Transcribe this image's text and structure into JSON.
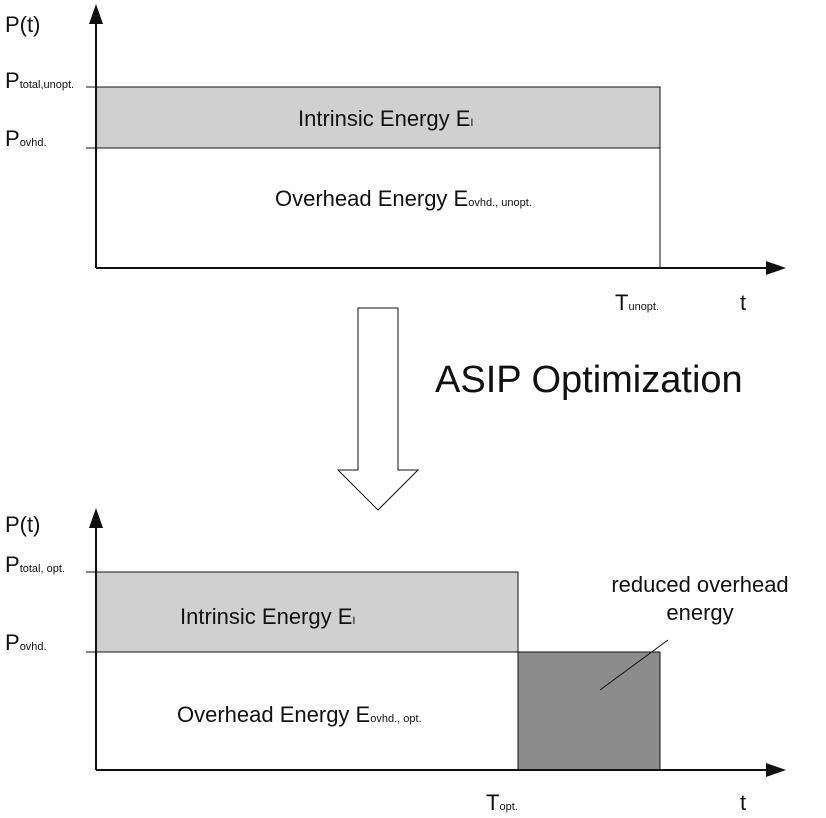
{
  "top": {
    "y_axis_label": "P(t)",
    "level_total": {
      "main": "P",
      "sub": "total,unopt."
    },
    "level_overhead": {
      "main": "P",
      "sub": "ovhd."
    },
    "intrinsic": {
      "main": "Intrinsic Energy E",
      "sub": "I"
    },
    "overhead": {
      "main": "Overhead Energy E",
      "sub": "ovhd., unopt."
    },
    "time": {
      "main": "T",
      "sub": "unopt."
    },
    "x_axis_label": "t"
  },
  "transition": "ASIP Optimization",
  "bottom": {
    "y_axis_label": "P(t)",
    "level_total": {
      "main": "P",
      "sub": "total, opt."
    },
    "level_overhead": {
      "main": "P",
      "sub": "ovhd."
    },
    "intrinsic": {
      "main": "Intrinsic Energy E",
      "sub": "I"
    },
    "overhead": {
      "main": "Overhead Energy E",
      "sub": "ovhd., opt."
    },
    "time": {
      "main": "T",
      "sub": "opt."
    },
    "x_axis_label": "t",
    "reduced": [
      "reduced overhead",
      "energy"
    ]
  }
}
